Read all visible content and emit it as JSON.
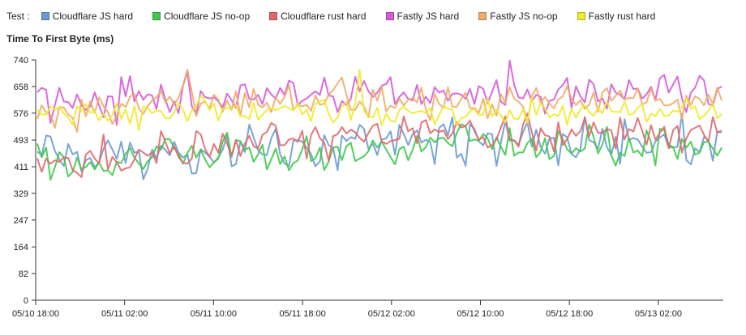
{
  "legend": {
    "label": "Test :",
    "entries": [
      {
        "name": "Cloudflare JS hard",
        "color": "#6a9ad2"
      },
      {
        "name": "Cloudflare JS no-op",
        "color": "#3ec94a"
      },
      {
        "name": "Cloudflare rust hard",
        "color": "#e0686a"
      },
      {
        "name": "Fastly JS hard",
        "color": "#d65ad8"
      },
      {
        "name": "Fastly JS no-op",
        "color": "#efaa68"
      },
      {
        "name": "Fastly rust hard",
        "color": "#f0ea2a"
      }
    ]
  },
  "chart_data": {
    "type": "line",
    "title": "Time To First Byte (ms)",
    "xlabel": "",
    "ylabel": "Time To First Byte (ms)",
    "ylim": [
      0,
      740
    ],
    "yticks": [
      "740",
      "658",
      "576",
      "493",
      "411",
      "329",
      "247",
      "164",
      "82",
      "0"
    ],
    "xticks": [
      "05/10 18:00",
      "05/11 02:00",
      "05/11 10:00",
      "05/11 18:00",
      "05/12 02:00",
      "05/12 10:00",
      "05/12 18:00",
      "05/13 02:00"
    ],
    "grid": false,
    "legend_position": "top",
    "x_start": "05/10 18:00",
    "x_end": "05/13 07:30",
    "points_per_series": 156,
    "series": [
      {
        "name": "Cloudflare JS hard",
        "color": "#6a9ad2",
        "values": [
          458,
          446,
          507,
          504,
          459,
          433,
          413,
          481,
          449,
          457,
          396,
          431,
          438,
          409,
          425,
          467,
          492,
          464,
          435,
          488,
          422,
          485,
          454,
          459,
          372,
          405,
          464,
          436,
          476,
          463,
          446,
          488,
          454,
          439,
          449,
          390,
          391,
          465,
          455,
          442,
          424,
          439,
          464,
          507,
          412,
          419,
          489,
          456,
          541,
          501,
          462,
          449,
          447,
          499,
          528,
          449,
          421,
          413,
          491,
          493,
          488,
          469,
          450,
          412,
          427,
          508,
          477,
          470,
          401,
          507,
          490,
          502,
          497,
          540,
          528,
          466,
          482,
          447,
          495,
          498,
          520,
          448,
          540,
          512,
          478,
          511,
          523,
          485,
          494,
          488,
          419,
          530,
          542,
          507,
          563,
          439,
          451,
          414,
          541,
          528,
          489,
          477,
          514,
          511,
          413,
          485,
          552,
          491,
          492,
          479,
          517,
          549,
          473,
          525,
          472,
          451,
          498,
          500,
          415,
          512,
          501,
          450,
          440,
          466,
          565,
          493,
          486,
          466,
          528,
          472,
          448,
          503,
          420,
          557,
          494,
          499,
          495,
          473,
          454,
          456,
          489,
          501,
          511,
          470,
          471,
          472,
          574,
          431,
          418,
          468,
          456,
          503,
          492,
          429,
          519,
          517
        ]
      },
      {
        "name": "Cloudflare JS no-op",
        "color": "#3ec94a",
        "values": [
          482,
          440,
          470,
          371,
          410,
          456,
          440,
          381,
          395,
          439,
          403,
          410,
          425,
          403,
          424,
          398,
          400,
          385,
          426,
          422,
          451,
          469,
          439,
          421,
          404,
          428,
          440,
          474,
          463,
          496,
          496,
          468,
          450,
          420,
          453,
          476,
          439,
          464,
          434,
          409,
          424,
          436,
          489,
          516,
          441,
          493,
          490,
          463,
          470,
          426,
          449,
          479,
          403,
          434,
          467,
          419,
          443,
          400,
          422,
          430,
          464,
          505,
          428,
          437,
          470,
          401,
          427,
          470,
          473,
          431,
          474,
          485,
          428,
          436,
          443,
          459,
          492,
          470,
          489,
          464,
          441,
          418,
          465,
          473,
          431,
          462,
          506,
          458,
          471,
          501,
          486,
          498,
          500,
          484,
          474,
          515,
          542,
          536,
          490,
          495,
          491,
          512,
          498,
          465,
          502,
          473,
          447,
          530,
          445,
          455,
          455,
          483,
          497,
          440,
          457,
          499,
          434,
          444,
          521,
          495,
          465,
          452,
          468,
          458,
          467,
          541,
          503,
          452,
          479,
          534,
          446,
          414,
          454,
          444,
          499,
          455,
          461,
          443,
          523,
          485,
          415,
          528,
          523,
          480,
          471,
          435,
          496,
          470,
          488,
          448,
          455,
          487,
          488,
          467,
          445,
          470
        ]
      },
      {
        "name": "Cloudflare rust hard",
        "color": "#e0686a",
        "values": [
          437,
          395,
          436,
          420,
          431,
          426,
          440,
          438,
          401,
          392,
          379,
          449,
          460,
          436,
          421,
          510,
          403,
          441,
          425,
          399,
          406,
          409,
          434,
          464,
          455,
          445,
          456,
          422,
          521,
          488,
          452,
          474,
          441,
          423,
          420,
          436,
          521,
          511,
          466,
          441,
          481,
          454,
          513,
          482,
          445,
          493,
          444,
          482,
          506,
          474,
          467,
          509,
          518,
          546,
          537,
          477,
          478,
          495,
          498,
          487,
          522,
          436,
          509,
          533,
          499,
          484,
          429,
          505,
          511,
          533,
          513,
          525,
          517,
          500,
          488,
          515,
          537,
          543,
          489,
          481,
          490,
          493,
          497,
          566,
          520,
          530,
          483,
          547,
          555,
          514,
          526,
          518,
          523,
          496,
          514,
          548,
          532,
          536,
          553,
          521,
          495,
          502,
          470,
          478,
          495,
          532,
          566,
          496,
          492,
          473,
          540,
          575,
          517,
          461,
          530,
          508,
          504,
          458,
          548,
          478,
          496,
          526,
          506,
          521,
          561,
          506,
          548,
          515,
          516,
          527,
          523,
          467,
          562,
          495,
          527,
          519,
          561,
          522,
          479,
          539,
          494,
          515,
          534,
          468,
          523,
          537,
          455,
          498,
          524,
          531,
          538,
          509,
          488,
          564,
          516,
          523
        ]
      },
      {
        "name": "Fastly JS hard",
        "color": "#d65ad8",
        "values": [
          640,
          654,
          648,
          546,
          602,
          654,
          612,
          610,
          592,
          634,
          601,
          586,
          597,
          640,
          600,
          563,
          628,
          627,
          540,
          687,
          628,
          690,
          612,
          644,
          617,
          634,
          630,
          589,
          664,
          618,
          579,
          612,
          576,
          660,
          703,
          597,
          573,
          644,
          626,
          621,
          625,
          612,
          594,
          636,
          616,
          592,
          661,
          665,
          620,
          618,
          632,
          604,
          653,
          633,
          621,
          654,
          632,
          676,
          669,
          601,
          614,
          621,
          633,
          643,
          632,
          686,
          630,
          628,
          579,
          613,
          601,
          620,
          688,
          643,
          675,
          643,
          626,
          639,
          660,
          666,
          687,
          604,
          626,
          640,
          620,
          615,
          663,
          604,
          627,
          607,
          656,
          639,
          646,
          614,
          635,
          637,
          633,
          620,
          651,
          604,
          659,
          651,
          607,
          642,
          678,
          612,
          601,
          738,
          663,
          625,
          621,
          649,
          614,
          632,
          626,
          574,
          614,
          618,
          649,
          662,
          685,
          592,
          659,
          628,
          609,
          679,
          665,
          612,
          621,
          590,
          665,
          639,
          633,
          618,
          678,
          650,
          652,
          621,
          634,
          657,
          617,
          684,
          694,
          639,
          664,
          689,
          622,
          579,
          639,
          655,
          691,
          677,
          605,
          599,
          650,
          658
        ]
      },
      {
        "name": "Fastly JS no-op",
        "color": "#efaa68",
        "values": [
          558,
          600,
          578,
          571,
          531,
          595,
          593,
          572,
          561,
          518,
          618,
          566,
          612,
          577,
          625,
          597,
          579,
          543,
          568,
          605,
          595,
          626,
          635,
          591,
          573,
          598,
          615,
          625,
          644,
          609,
          627,
          603,
          624,
          661,
          710,
          642,
          567,
          605,
          612,
          590,
          633,
          617,
          580,
          615,
          586,
          644,
          568,
          638,
          594,
          651,
          602,
          594,
          608,
          579,
          625,
          604,
          627,
          662,
          586,
          602,
          597,
          602,
          583,
          630,
          602,
          605,
          633,
          647,
          668,
          686,
          633,
          586,
          586,
          612,
          597,
          563,
          648,
          614,
          657,
          581,
          599,
          592,
          620,
          600,
          617,
          623,
          609,
          655,
          586,
          554,
          635,
          605,
          592,
          656,
          596,
          595,
          620,
          639,
          591,
          592,
          576,
          621,
          560,
          603,
          568,
          634,
          608,
          656,
          620,
          611,
          596,
          546,
          629,
          654,
          609,
          626,
          605,
          591,
          618,
          628,
          658,
          620,
          601,
          616,
          589,
          602,
          640,
          580,
          640,
          653,
          614,
          629,
          645,
          618,
          623,
          622,
          652,
          603,
          610,
          651,
          614,
          620,
          600,
          600,
          607,
          618,
          557,
          630,
          601,
          628,
          620,
          600,
          633,
          604,
          654,
          615
        ]
      },
      {
        "name": "Fastly rust hard",
        "color": "#f0ea2a",
        "values": [
          587,
          571,
          572,
          597,
          586,
          596,
          575,
          562,
          540,
          597,
          582,
          604,
          577,
          583,
          554,
          575,
          552,
          570,
          605,
          558,
          587,
          543,
          599,
          524,
          596,
          592,
          576,
          584,
          582,
          561,
          560,
          579,
          608,
          587,
          551,
          585,
          597,
          631,
          615,
          585,
          606,
          553,
          590,
          591,
          589,
          601,
          566,
          567,
          558,
          607,
          556,
          571,
          586,
          592,
          585,
          591,
          599,
          590,
          585,
          606,
          572,
          586,
          551,
          604,
          612,
          617,
          574,
          547,
          562,
          596,
          611,
          555,
          605,
          710,
          582,
          567,
          562,
          593,
          539,
          574,
          554,
          549,
          586,
          597,
          583,
          575,
          580,
          583,
          576,
          592,
          542,
          569,
          598,
          590,
          588,
          537,
          561,
          564,
          582,
          589,
          569,
          573,
          621,
          566,
          586,
          569,
          548,
          585,
          559,
          558,
          587,
          547,
          627,
          570,
          608,
          590,
          563,
          573,
          566,
          599,
          540,
          590,
          562,
          587,
          600,
          580,
          567,
          592,
          575,
          613,
          582,
          580,
          579,
          612,
          570,
          574,
          593,
          603,
          549,
          574,
          567,
          589,
          567,
          569,
          584,
          580,
          593,
          622,
          591,
          597,
          557,
          568,
          583,
          606,
          560,
          573
        ]
      }
    ]
  }
}
